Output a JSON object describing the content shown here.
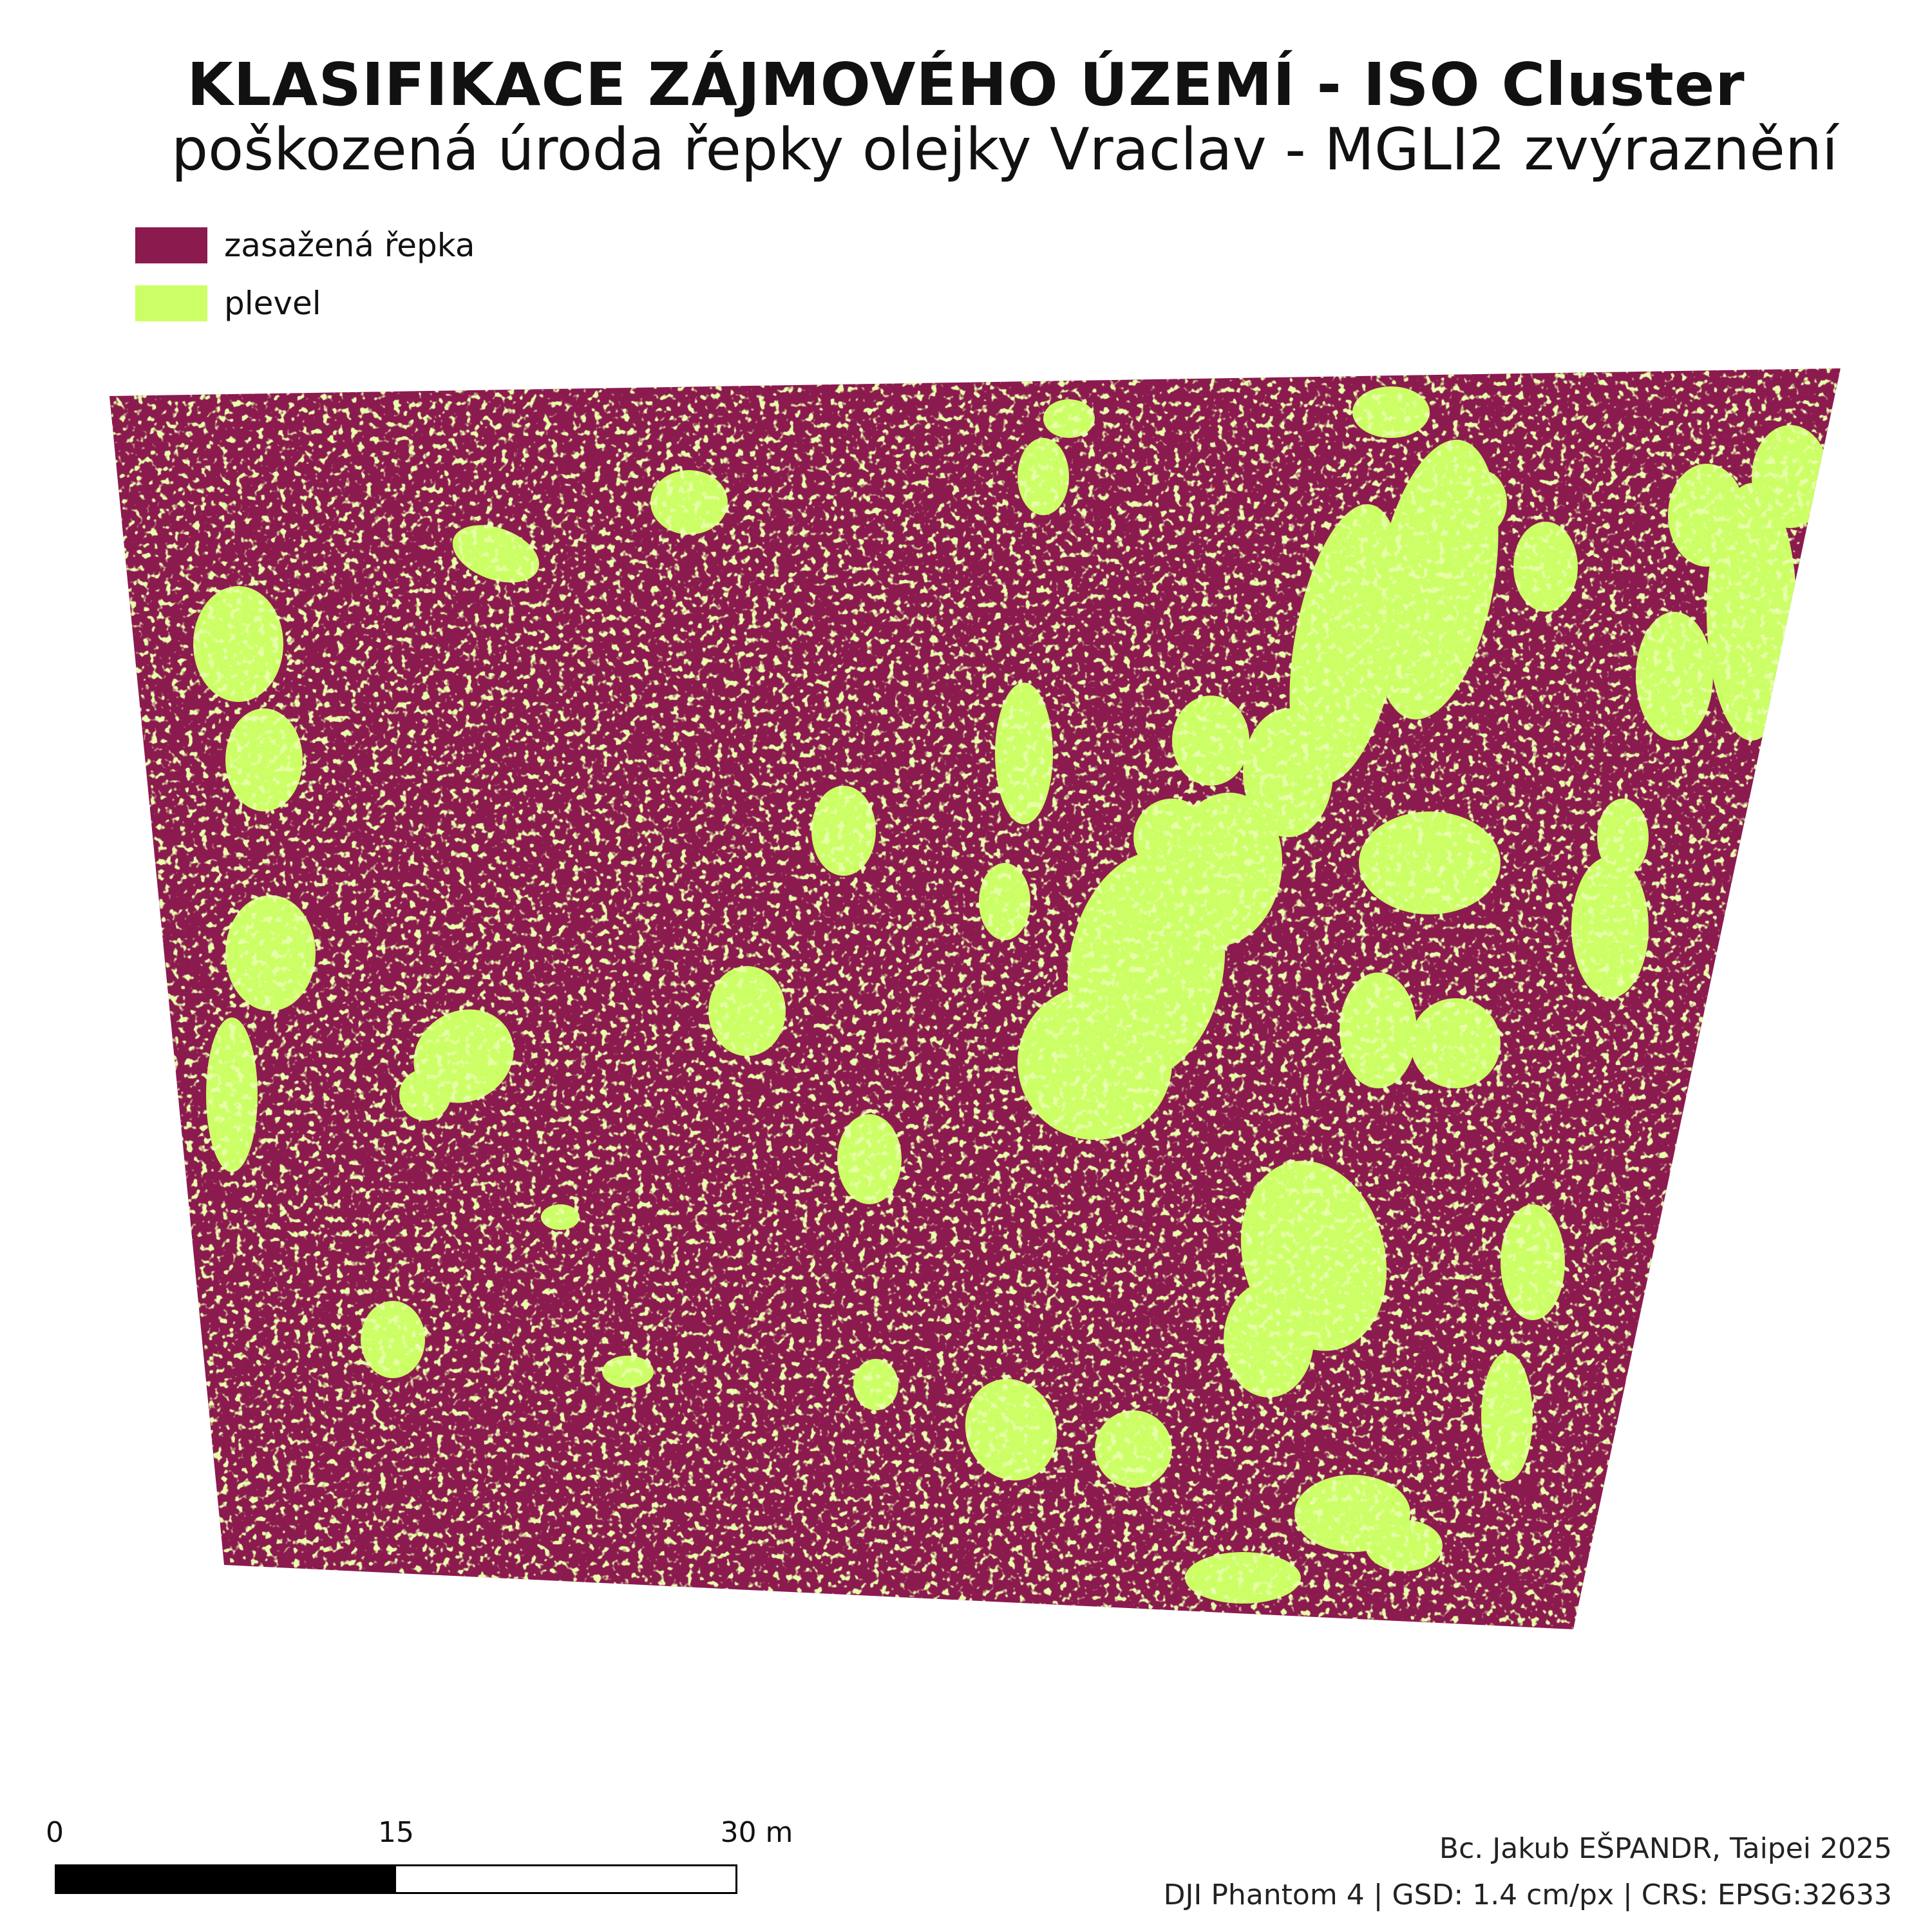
{
  "title": "KLASIFIKACE ZÁJMOVÉHO ÚZEMÍ - ISO Cluster",
  "subtitle": "poškozená úroda řepky olejky Vraclav - MGLI2 zvýraznění",
  "legend": {
    "items": [
      {
        "label": "zasažená řepka",
        "color": "#8B1A4F"
      },
      {
        "label": "plevel",
        "color": "#CCFF66"
      }
    ]
  },
  "map": {
    "background_class_color": "#8B1A4F",
    "weed_class_color": "#CCFF66"
  },
  "scalebar": {
    "tick_0": "0",
    "tick_15": "15",
    "tick_30": "30 m"
  },
  "credits": {
    "author": "Bc. Jakub EŠPANDR, Taipei 2025",
    "metadata": "DJI Phantom 4 | GSD: 1.4 cm/px | CRS: EPSG:32633"
  }
}
